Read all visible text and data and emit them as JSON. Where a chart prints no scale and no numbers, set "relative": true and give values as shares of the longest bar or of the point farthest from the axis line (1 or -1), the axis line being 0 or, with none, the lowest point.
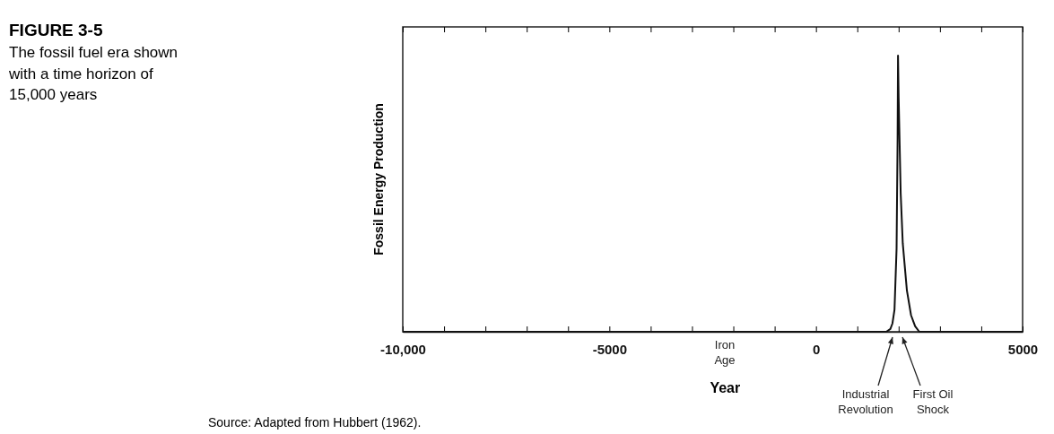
{
  "chart_data": {
    "type": "line",
    "title": "FIGURE 3-5",
    "subtitle": "The fossil fuel era shown with a time horizon of 15,000 years",
    "xlabel": "Year",
    "ylabel": "Fossil Energy Production",
    "relative": true,
    "x": [
      -10000,
      1700,
      1800,
      1850,
      1900,
      1950,
      1975,
      1985,
      2000,
      2050,
      2100,
      2200,
      2300,
      2400,
      2500,
      5000
    ],
    "series": [
      {
        "color": "#111111",
        "values": [
          0,
          0,
          0.01,
          0.03,
          0.08,
          0.3,
          0.7,
          1,
          0.85,
          0.5,
          0.32,
          0.15,
          0.06,
          0.02,
          0,
          0
        ]
      }
    ],
    "xlim": [
      -10000,
      5000
    ],
    "xticks": [
      {
        "value": -10000,
        "label": "-10,000"
      },
      {
        "value": -9000,
        "label": null
      },
      {
        "value": -8000,
        "label": null
      },
      {
        "value": -7000,
        "label": null
      },
      {
        "value": -6000,
        "label": null
      },
      -5000,
      {
        "value": -4000,
        "label": null
      },
      {
        "value": -3000,
        "label": null
      },
      {
        "value": -2000,
        "label": null
      },
      {
        "value": -1000,
        "label": null
      },
      0,
      {
        "value": 1000,
        "label": null
      },
      {
        "value": 2000,
        "label": null
      },
      {
        "value": 3000,
        "label": null
      },
      {
        "value": 4000,
        "label": null
      },
      5000
    ],
    "annotations": [
      "Iron Age",
      "Industrial Revolution",
      "First Oil Shock",
      "Source: Adapted from Hubbert (1962)."
    ],
    "grid": false,
    "marker": "none",
    "line_style": "solid"
  }
}
